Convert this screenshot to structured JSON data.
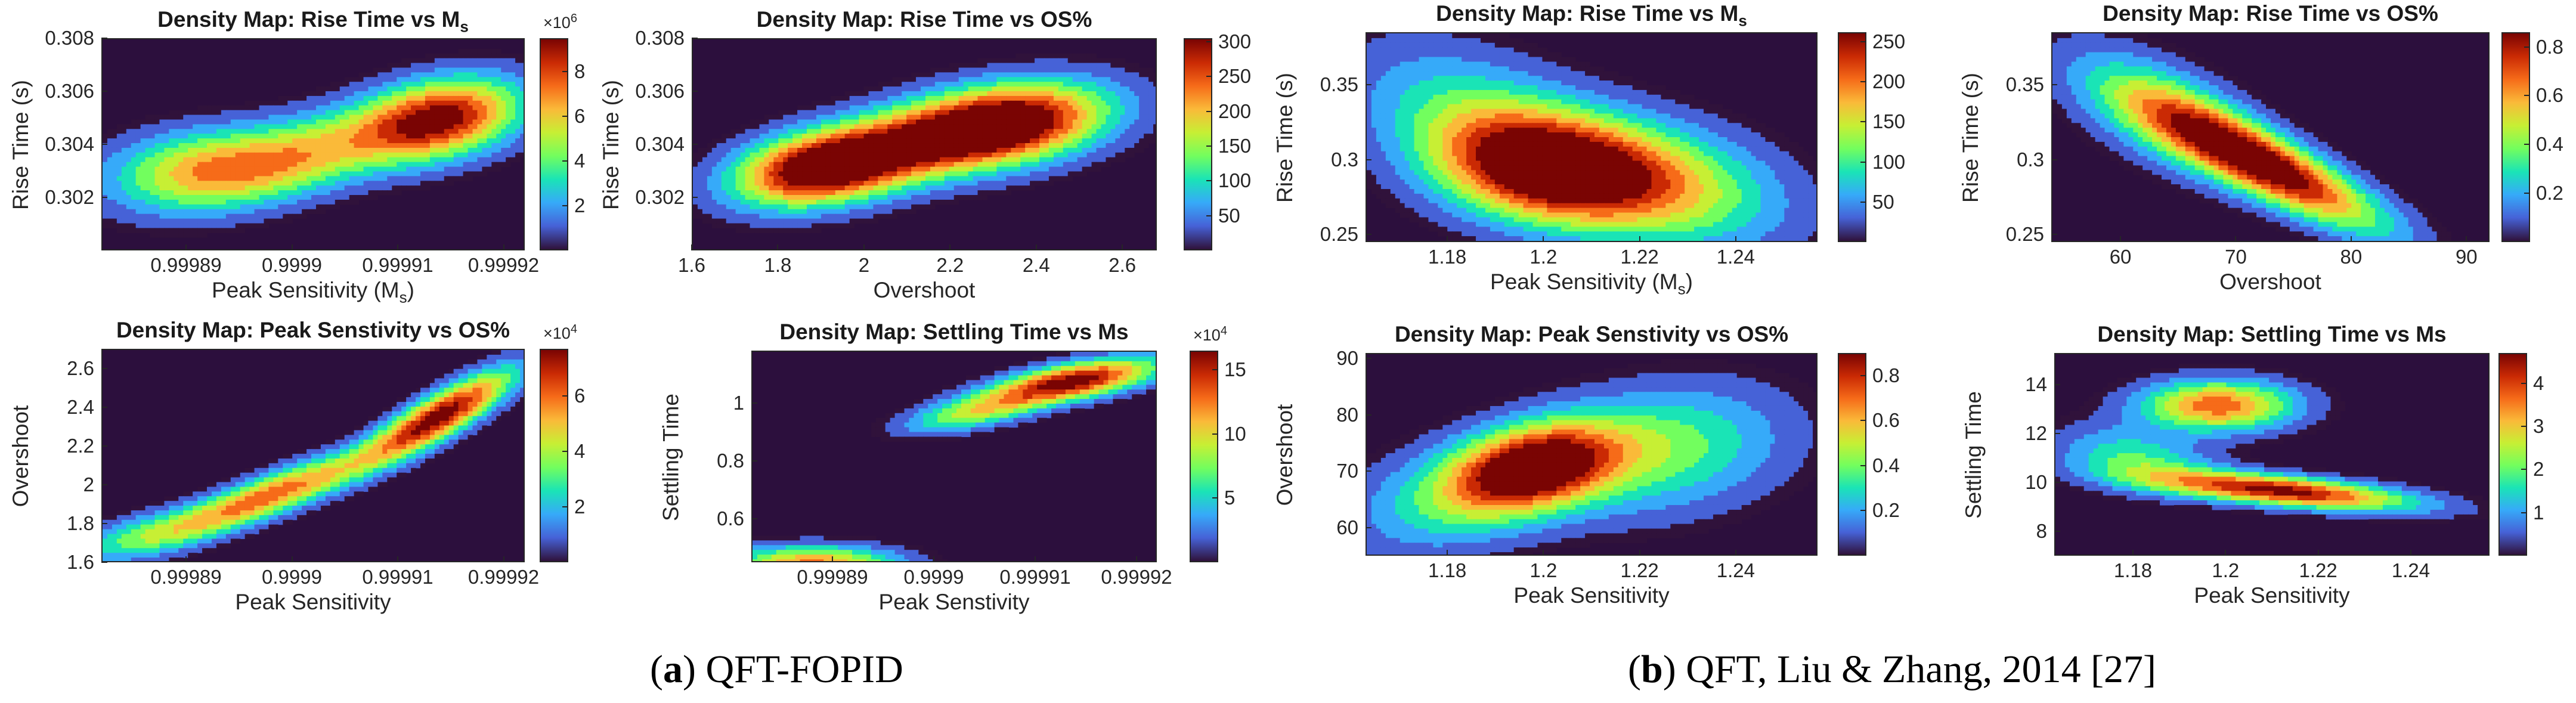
{
  "captions": [
    {
      "label": "a",
      "text": "QFT-FOPID"
    },
    {
      "label": "b",
      "text": "QFT, Liu & Zhang, 2014 [27]"
    }
  ],
  "colormap": [
    "#30123b",
    "#4662d7",
    "#36aaf9",
    "#1ae4b6",
    "#72fe5e",
    "#c7ef34",
    "#faba39",
    "#f66b19",
    "#ca2a04",
    "#7a0403"
  ],
  "background_color": "#2c0f3d",
  "chart_data": [
    {
      "type": "heatmap",
      "group": "a",
      "title": "Density Map:  Rise Time  vs  M",
      "title_sub": "s",
      "xlabel": "Peak Sensitivity (M",
      "xlabel_sub": "s",
      "xlabel_end": ")",
      "ylabel": "Rise Time (s)",
      "xlim": [
        0.999882,
        0.999922
      ],
      "ylim": [
        0.3,
        0.308
      ],
      "xticks": [
        "0.99989",
        "0.9999",
        "0.99991",
        "0.99992"
      ],
      "xtick_values": [
        0.99989,
        0.9999,
        0.99991,
        0.99992
      ],
      "yticks": [
        "0.302",
        "0.304",
        "0.306",
        "0.308"
      ],
      "ytick_values": [
        0.302,
        0.304,
        0.306,
        0.308
      ],
      "clim": [
        0,
        9.5
      ],
      "cticks": [
        "2",
        "4",
        "6",
        "8"
      ],
      "ctick_values": [
        2,
        4,
        6,
        8
      ],
      "cexponent": "×10",
      "cexponent_power": "6",
      "peaks": [
        {
          "x": 0.999914,
          "y": 0.305,
          "amp": 8.9,
          "sx": 5.5e-06,
          "sy": 0.0011,
          "rho": 0.3
        },
        {
          "x": 0.9999,
          "y": 0.3035,
          "amp": 5.5,
          "sx": 7e-06,
          "sy": 0.0012,
          "rho": 0.5
        },
        {
          "x": 0.99989,
          "y": 0.3031,
          "amp": 4.6,
          "sx": 6e-06,
          "sy": 0.0011,
          "rho": 0.2
        }
      ]
    },
    {
      "type": "heatmap",
      "group": "a",
      "title": "Density Map: Rise Time vs OS%",
      "xlabel": "Overshoot",
      "ylabel": "Rise Time (s)",
      "xlim": [
        1.6,
        2.68
      ],
      "ylim": [
        0.3,
        0.308
      ],
      "xticks": [
        "1.6",
        "1.8",
        "2",
        "2.2",
        "2.4",
        "2.6"
      ],
      "xtick_values": [
        1.6,
        1.8,
        2.0,
        2.2,
        2.4,
        2.6
      ],
      "yticks": [
        "0.302",
        "0.304",
        "0.306",
        "0.308"
      ],
      "ytick_values": [
        0.302,
        0.304,
        0.306,
        0.308
      ],
      "clim": [
        0,
        305
      ],
      "cticks": [
        "50",
        "100",
        "150",
        "200",
        "250",
        "300"
      ],
      "ctick_values": [
        50,
        100,
        150,
        200,
        250,
        300
      ],
      "peaks": [
        {
          "x": 2.33,
          "y": 0.3048,
          "amp": 290,
          "sx": 0.17,
          "sy": 0.0011,
          "rho": 0.3
        },
        {
          "x": 1.89,
          "y": 0.3031,
          "amp": 265,
          "sx": 0.14,
          "sy": 0.001,
          "rho": 0.3
        },
        {
          "x": 2.1,
          "y": 0.304,
          "amp": 170,
          "sx": 0.2,
          "sy": 0.0012,
          "rho": 0.5
        }
      ]
    },
    {
      "type": "heatmap",
      "group": "a",
      "title": "Density Map: Peak Senstivity vs OS%",
      "xlabel": "Peak Sensitivity",
      "ylabel": "Overshoot",
      "xlim": [
        0.999882,
        0.999922
      ],
      "ylim": [
        1.6,
        2.7
      ],
      "xticks": [
        "0.99989",
        "0.9999",
        "0.99991",
        "0.99992"
      ],
      "xtick_values": [
        0.99989,
        0.9999,
        0.99991,
        0.99992
      ],
      "yticks": [
        "1.6",
        "1.8",
        "2",
        "2.2",
        "2.4",
        "2.6"
      ],
      "ytick_values": [
        1.6,
        1.8,
        2.0,
        2.2,
        2.4,
        2.6
      ],
      "clim": [
        0,
        7.7
      ],
      "cticks": [
        "2",
        "4",
        "6"
      ],
      "ctick_values": [
        2,
        4,
        6
      ],
      "cexponent": "×10",
      "cexponent_power": "4",
      "peaks": [
        {
          "x": 0.999914,
          "y": 2.36,
          "amp": 7.4,
          "sx": 5e-06,
          "sy": 0.17,
          "rho": 0.85
        },
        {
          "x": 0.999898,
          "y": 1.95,
          "amp": 5.8,
          "sx": 6.5e-06,
          "sy": 0.15,
          "rho": 0.85
        },
        {
          "x": 0.999886,
          "y": 1.74,
          "amp": 3.0,
          "sx": 5e-06,
          "sy": 0.1,
          "rho": 0.6
        }
      ]
    },
    {
      "type": "heatmap",
      "group": "a",
      "title": "Density Map: Settling Time vs Ms",
      "xlabel": "Peak Senstivity",
      "ylabel": "Settling Time",
      "xlim": [
        0.999882,
        0.999922
      ],
      "ylim": [
        0.45,
        1.18
      ],
      "xticks": [
        "0.99989",
        "0.9999",
        "0.99991",
        "0.99992"
      ],
      "xtick_values": [
        0.99989,
        0.9999,
        0.99991,
        0.99992
      ],
      "yticks": [
        "0.6",
        "0.8",
        "1"
      ],
      "ytick_values": [
        0.6,
        0.8,
        1.0
      ],
      "clim": [
        0,
        16.5
      ],
      "cticks": [
        "5",
        "10",
        "15"
      ],
      "ctick_values": [
        5,
        10,
        15
      ],
      "cexponent": "×10",
      "cexponent_power": "4",
      "peaks": [
        {
          "x": 0.999914,
          "y": 1.08,
          "amp": 15.8,
          "sx": 6e-06,
          "sy": 0.055,
          "rho": 0.6
        },
        {
          "x": 0.999904,
          "y": 0.97,
          "amp": 8.0,
          "sx": 5e-06,
          "sy": 0.05,
          "rho": 0.6
        },
        {
          "x": 0.999888,
          "y": 0.45,
          "amp": 12.0,
          "sx": 6e-06,
          "sy": 0.045,
          "rho": 0.0
        }
      ]
    },
    {
      "type": "heatmap",
      "group": "b",
      "title": "Density  Map:  Rise  Time  vs  M",
      "title_sub": "s",
      "xlabel": "Peak  Sensitivity  (M",
      "xlabel_sub": "s",
      "xlabel_end": ")",
      "ylabel": "Rise Time (s)",
      "xlim": [
        1.163,
        1.257
      ],
      "ylim": [
        0.245,
        0.385
      ],
      "xticks": [
        "1.18",
        "1.2",
        "1.22",
        "1.24"
      ],
      "xtick_values": [
        1.18,
        1.2,
        1.22,
        1.24
      ],
      "yticks": [
        "0.25",
        "0.3",
        "0.35"
      ],
      "ytick_values": [
        0.25,
        0.3,
        0.35
      ],
      "clim": [
        0,
        262
      ],
      "cticks": [
        "50",
        "100",
        "150",
        "200",
        "250"
      ],
      "ctick_values": [
        50,
        100,
        150,
        200,
        250
      ],
      "peaks": [
        {
          "x": 1.2,
          "y": 0.293,
          "amp": 240,
          "sx": 0.016,
          "sy": 0.026,
          "rho": -0.2
        },
        {
          "x": 1.225,
          "y": 0.283,
          "amp": 140,
          "sx": 0.018,
          "sy": 0.03,
          "rho": -0.3
        },
        {
          "x": 1.185,
          "y": 0.33,
          "amp": 90,
          "sx": 0.018,
          "sy": 0.035,
          "rho": -0.4
        }
      ]
    },
    {
      "type": "heatmap",
      "group": "b",
      "title": "Density Map: Rise Time vs OS%",
      "xlabel": "Overshoot",
      "ylabel": "Rise Time (s)",
      "xlim": [
        54,
        92
      ],
      "ylim": [
        0.245,
        0.385
      ],
      "xticks": [
        "60",
        "70",
        "80",
        "90"
      ],
      "xtick_values": [
        60,
        70,
        80,
        90
      ],
      "yticks": [
        "0.25",
        "0.3",
        "0.35"
      ],
      "ytick_values": [
        0.25,
        0.3,
        0.35
      ],
      "clim": [
        0,
        0.86
      ],
      "cticks": [
        "0.2",
        "0.4",
        "0.6",
        "0.8"
      ],
      "ctick_values": [
        0.2,
        0.4,
        0.6,
        0.8
      ],
      "peaks": [
        {
          "x": 73,
          "y": 0.294,
          "amp": 0.82,
          "sx": 7.0,
          "sy": 0.03,
          "rho": -0.85
        },
        {
          "x": 64,
          "y": 0.33,
          "amp": 0.4,
          "sx": 6.0,
          "sy": 0.03,
          "rho": -0.6
        }
      ]
    },
    {
      "type": "heatmap",
      "group": "b",
      "title": "Density Map: Peak Senstivity vs OS%",
      "xlabel": "Peak Sensitivity",
      "ylabel": "Overshoot",
      "xlim": [
        1.163,
        1.257
      ],
      "ylim": [
        55,
        91
      ],
      "xticks": [
        "1.18",
        "1.2",
        "1.22",
        "1.24"
      ],
      "xtick_values": [
        1.18,
        1.2,
        1.22,
        1.24
      ],
      "yticks": [
        "60",
        "70",
        "80",
        "90"
      ],
      "ytick_values": [
        60,
        70,
        80,
        90
      ],
      "clim": [
        0,
        0.9
      ],
      "cticks": [
        "0.2",
        "0.4",
        "0.6",
        "0.8"
      ],
      "ctick_values": [
        0.2,
        0.4,
        0.6,
        0.8
      ],
      "peaks": [
        {
          "x": 1.198,
          "y": 71,
          "amp": 0.85,
          "sx": 0.012,
          "sy": 5.5,
          "rho": 0.3
        },
        {
          "x": 1.225,
          "y": 74,
          "amp": 0.4,
          "sx": 0.018,
          "sy": 8.0,
          "rho": 0.2
        },
        {
          "x": 1.18,
          "y": 65,
          "amp": 0.3,
          "sx": 0.015,
          "sy": 7.0,
          "rho": 0.3
        }
      ]
    },
    {
      "type": "heatmap",
      "group": "b",
      "title": "Density Map: Settling Time vs Ms",
      "xlabel": "Peak Sensitivity",
      "ylabel": "Settling Time",
      "xlim": [
        1.163,
        1.257
      ],
      "ylim": [
        7,
        15.3
      ],
      "xticks": [
        "1.18",
        "1.2",
        "1.22",
        "1.24"
      ],
      "xtick_values": [
        1.18,
        1.2,
        1.22,
        1.24
      ],
      "yticks": [
        "8",
        "10",
        "12",
        "14"
      ],
      "ytick_values": [
        8,
        10,
        12,
        14
      ],
      "clim": [
        0,
        4.7
      ],
      "cticks": [
        "1",
        "2",
        "3",
        "4"
      ],
      "ctick_values": [
        1,
        2,
        3,
        4
      ],
      "peaks": [
        {
          "x": 1.212,
          "y": 9.7,
          "amp": 4.4,
          "sx": 0.02,
          "sy": 0.55,
          "rho": -0.6
        },
        {
          "x": 1.198,
          "y": 13.2,
          "amp": 3.6,
          "sx": 0.012,
          "sy": 0.75,
          "rho": 0.0
        },
        {
          "x": 1.18,
          "y": 11.0,
          "amp": 1.8,
          "sx": 0.012,
          "sy": 0.9,
          "rho": -0.3
        }
      ]
    }
  ]
}
